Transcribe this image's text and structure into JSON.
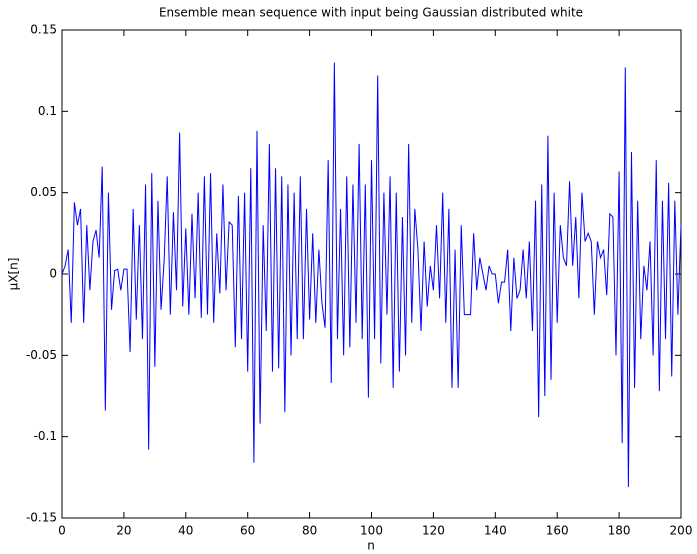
{
  "chart_data": {
    "type": "line",
    "title": "Ensemble mean sequence with input being Gaussian distributed white",
    "x_label": "n",
    "y_label": "μX[n]",
    "color": "#0000ff",
    "grid": false,
    "xlim": [
      0,
      200
    ],
    "xticks": [
      0,
      20,
      40,
      60,
      80,
      100,
      120,
      140,
      160,
      180,
      200
    ],
    "ylim": [
      -0.15,
      0.15
    ],
    "yticks": [
      -0.15,
      -0.1,
      -0.05,
      0,
      0.05,
      0.1,
      0.15
    ],
    "x": [
      0,
      1,
      2,
      3,
      4,
      5,
      6,
      7,
      8,
      9,
      10,
      11,
      12,
      13,
      14,
      15,
      16,
      17,
      18,
      19,
      20,
      21,
      22,
      23,
      24,
      25,
      26,
      27,
      28,
      29,
      30,
      31,
      32,
      33,
      34,
      35,
      36,
      37,
      38,
      39,
      40,
      41,
      42,
      43,
      44,
      45,
      46,
      47,
      48,
      49,
      50,
      51,
      52,
      53,
      54,
      55,
      56,
      57,
      58,
      59,
      60,
      61,
      62,
      63,
      64,
      65,
      66,
      67,
      68,
      69,
      70,
      71,
      72,
      73,
      74,
      75,
      76,
      77,
      78,
      79,
      80,
      81,
      82,
      83,
      84,
      85,
      86,
      87,
      88,
      89,
      90,
      91,
      92,
      93,
      94,
      95,
      96,
      97,
      98,
      99,
      100,
      101,
      102,
      103,
      104,
      105,
      106,
      107,
      108,
      109,
      110,
      111,
      112,
      113,
      114,
      115,
      116,
      117,
      118,
      119,
      120,
      121,
      122,
      123,
      124,
      125,
      126,
      127,
      128,
      129,
      130,
      131,
      132,
      133,
      134,
      135,
      136,
      137,
      138,
      139,
      140,
      141,
      142,
      143,
      144,
      145,
      146,
      147,
      148,
      149,
      150,
      151,
      152,
      153,
      154,
      155,
      156,
      157,
      158,
      159,
      160,
      161,
      162,
      163,
      164,
      165,
      166,
      167,
      168,
      169,
      170,
      171,
      172,
      173,
      174,
      175,
      176,
      177,
      178,
      179,
      180,
      181,
      182,
      183,
      184,
      185,
      186,
      187,
      188,
      189,
      190,
      191,
      192,
      193,
      194,
      195,
      196,
      197,
      198,
      199,
      200
    ],
    "values": [
      0,
      0.005,
      0.015,
      -0.03,
      0.044,
      0.03,
      0.04,
      -0.03,
      0.03,
      -0.01,
      0.02,
      0.027,
      0.01,
      0.066,
      -0.084,
      0.05,
      -0.022,
      0.002,
      0.003,
      -0.01,
      0.003,
      0.003,
      -0.048,
      0.04,
      -0.028,
      0.03,
      -0.04,
      0.055,
      -0.108,
      0.062,
      -0.057,
      0.045,
      -0.022,
      0.008,
      0.06,
      -0.025,
      0.038,
      -0.01,
      0.087,
      -0.02,
      0.028,
      -0.025,
      0.037,
      -0.015,
      0.05,
      -0.027,
      0.06,
      -0.025,
      0.062,
      -0.03,
      0.025,
      -0.012,
      0.055,
      -0.01,
      0.032,
      0.03,
      -0.045,
      0.048,
      -0.04,
      0.05,
      -0.06,
      0.065,
      -0.116,
      0.088,
      -0.092,
      0.03,
      -0.035,
      0.08,
      -0.06,
      0.065,
      -0.058,
      0.06,
      -0.085,
      0.055,
      -0.05,
      0.05,
      -0.04,
      0.06,
      -0.04,
      0.04,
      -0.028,
      0.025,
      -0.03,
      0.015,
      -0.018,
      -0.033,
      0.07,
      -0.067,
      0.13,
      -0.04,
      0.04,
      -0.05,
      0.06,
      -0.045,
      0.055,
      -0.03,
      0.08,
      -0.04,
      0.055,
      -0.076,
      0.07,
      -0.04,
      0.122,
      -0.055,
      0.05,
      -0.025,
      0.06,
      -0.07,
      0.05,
      -0.06,
      0.035,
      -0.05,
      0.08,
      -0.03,
      0.04,
      0.015,
      -0.035,
      0.02,
      -0.02,
      0.005,
      -0.01,
      0.03,
      -0.015,
      0.05,
      -0.03,
      0.04,
      -0.07,
      0.015,
      -0.07,
      0.03,
      -0.025,
      -0.025,
      -0.025,
      0.025,
      -0.01,
      0.01,
      0,
      -0.01,
      0.005,
      0,
      0,
      -0.018,
      -0.005,
      -0.005,
      0.015,
      -0.035,
      0.01,
      -0.015,
      -0.01,
      0.015,
      -0.015,
      0.02,
      -0.035,
      0.045,
      -0.088,
      0.055,
      -0.075,
      0.085,
      -0.065,
      0.05,
      -0.03,
      0.03,
      0.01,
      0.005,
      0.057,
      0.005,
      0.035,
      -0.015,
      0.05,
      0.02,
      0.025,
      0.02,
      -0.025,
      0.02,
      0.01,
      0.015,
      -0.013,
      0.037,
      0.035,
      -0.05,
      0.063,
      -0.104,
      0.127,
      -0.131,
      0.075,
      -0.07,
      0.045,
      -0.04,
      0.005,
      -0.01,
      0.02,
      -0.05,
      0.07,
      -0.072,
      0.045,
      -0.04,
      0.056,
      -0.063,
      0.045,
      -0.025,
      0.03
    ]
  }
}
